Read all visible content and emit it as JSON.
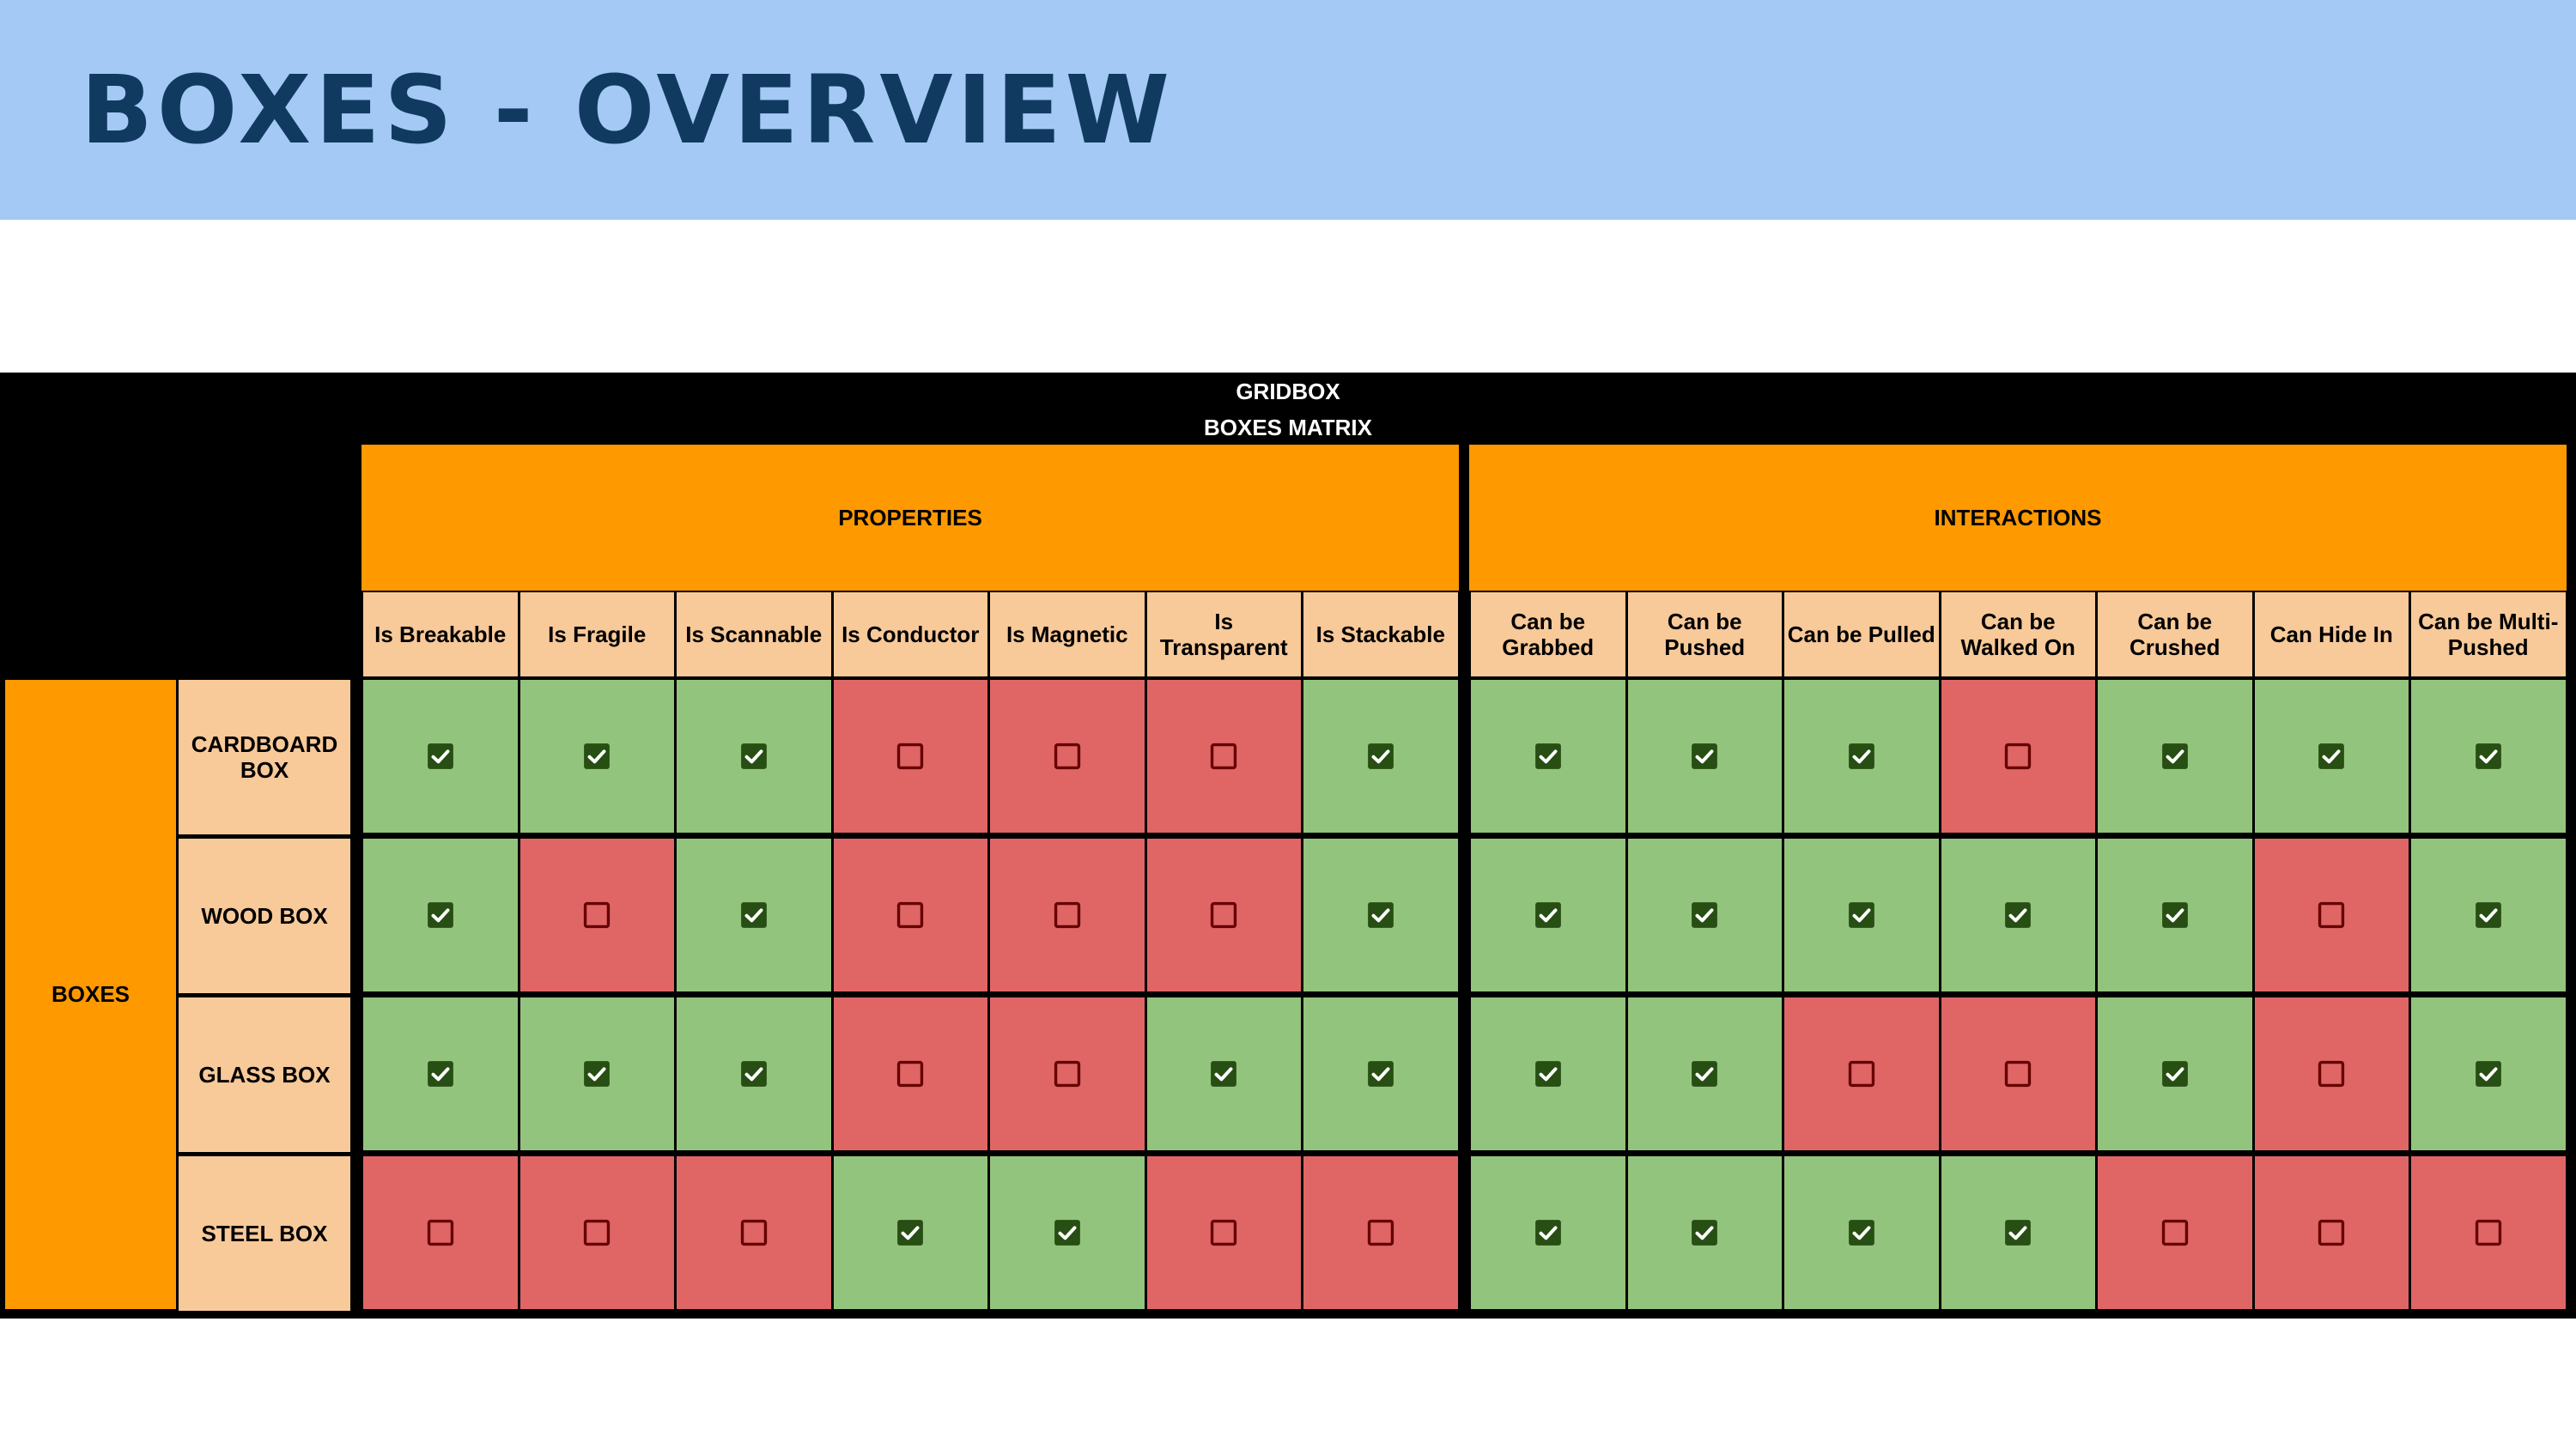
{
  "slide": {
    "title": "BOXES - OVERVIEW"
  },
  "matrix": {
    "title": "GRIDBOX",
    "subtitle": "BOXES MATRIX",
    "row_group_label": "BOXES",
    "groups": [
      {
        "label": "PROPERTIES",
        "columns": [
          "Is Breakable",
          "Is Fragile",
          "Is Scannable",
          "Is Conductor",
          "Is Magnetic",
          "Is Transparent",
          "Is Stackable"
        ]
      },
      {
        "label": "INTERACTIONS",
        "columns": [
          "Can be Grabbed",
          "Can be Pushed",
          "Can be Pulled",
          "Can be Walked On",
          "Can be Crushed",
          "Can Hide In",
          "Can be Multi-Pushed"
        ]
      }
    ],
    "rows": [
      {
        "label": "CARDBOARD BOX",
        "values": [
          true,
          true,
          true,
          false,
          false,
          false,
          true,
          true,
          true,
          true,
          false,
          true,
          true,
          true
        ]
      },
      {
        "label": "WOOD BOX",
        "values": [
          true,
          false,
          true,
          false,
          false,
          false,
          true,
          true,
          true,
          true,
          true,
          true,
          false,
          true
        ]
      },
      {
        "label": "GLASS BOX",
        "values": [
          true,
          true,
          true,
          false,
          false,
          true,
          true,
          true,
          true,
          false,
          false,
          true,
          false,
          true
        ]
      },
      {
        "label": "STEEL BOX",
        "values": [
          false,
          false,
          false,
          true,
          true,
          false,
          false,
          true,
          true,
          true,
          true,
          false,
          false,
          false
        ]
      }
    ],
    "colors": {
      "yes": "#93c47d",
      "no": "#e06666",
      "header": "#ff9900",
      "subheader": "#f8c999",
      "title_bar": "#a4c9f5",
      "title_text": "#113a60"
    },
    "icons": {
      "yes": "checked-checkbox-icon",
      "no": "unchecked-checkbox-icon"
    }
  }
}
